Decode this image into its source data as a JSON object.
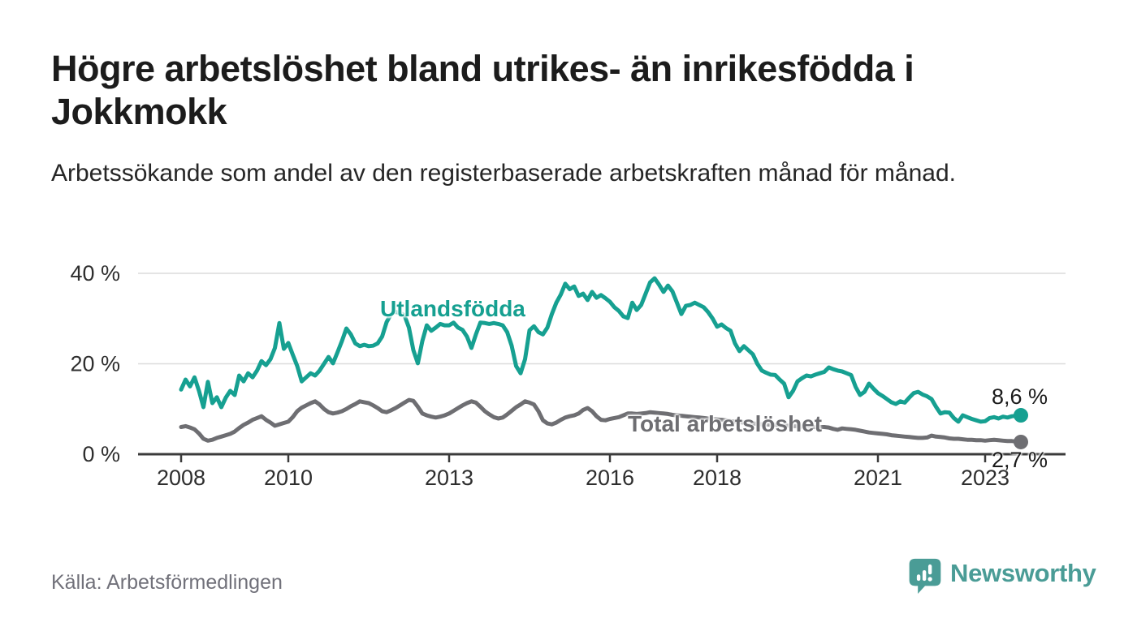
{
  "title": "Högre arbetslöshet bland utrikes- än inrikesfödda i Jokkmokk",
  "subtitle": "Arbetssökande som andel av den registerbaserade arbetskraften månad för månad.",
  "source": "Källa: Arbetsförmedlingen",
  "branding": {
    "name": "Newsworthy",
    "color": "#4a9c96",
    "icon": "bar-chart-exclamation-speech-bubble"
  },
  "chart_data": {
    "type": "line",
    "x_unit": "year, monthly points",
    "x_start": 2008.0,
    "x_step": 0.0833333,
    "xlim": [
      2007.2,
      2024.5
    ],
    "ylim": [
      0,
      40
    ],
    "grid": "horizontal",
    "legend_position": "inline-labels",
    "colors": {
      "axis": "#3b3b3b",
      "grid": "#dcdcdc"
    },
    "y_ticks": [
      {
        "value": 0,
        "label": "0 %"
      },
      {
        "value": 20,
        "label": "20 %"
      },
      {
        "value": 40,
        "label": "40 %"
      }
    ],
    "x_ticks": [
      {
        "year": 2008,
        "label": "2008"
      },
      {
        "year": 2010,
        "label": "2010"
      },
      {
        "year": 2013,
        "label": "2013"
      },
      {
        "year": 2016,
        "label": "2016"
      },
      {
        "year": 2018,
        "label": "2018"
      },
      {
        "year": 2021,
        "label": "2021"
      },
      {
        "year": 2023,
        "label": "2023"
      }
    ],
    "series": [
      {
        "name": "Utlandsfödda",
        "color": "#16a091",
        "end_value": 8.6,
        "end_label": "8,6 %",
        "values": [
          14.3,
          16.5,
          15.0,
          17.0,
          14.0,
          10.4,
          16.0,
          11.3,
          12.6,
          10.4,
          12.5,
          14.0,
          13.1,
          17.4,
          16.1,
          17.9,
          17.0,
          18.5,
          20.6,
          19.7,
          21.0,
          23.5,
          29.0,
          23.3,
          24.6,
          22.0,
          19.5,
          16.1,
          17.0,
          17.9,
          17.4,
          18.5,
          20.0,
          21.5,
          20.1,
          22.5,
          25.0,
          27.8,
          26.5,
          24.5,
          23.9,
          24.2,
          23.9,
          24.0,
          24.5,
          26.0,
          29.2,
          31.0,
          31.5,
          31.2,
          30.7,
          28.0,
          23.0,
          20.1,
          25.0,
          28.5,
          27.3,
          28.0,
          28.8,
          28.5,
          28.5,
          29.1,
          28.0,
          27.5,
          26.0,
          23.5,
          26.5,
          29.1,
          29.0,
          28.8,
          29.0,
          28.8,
          28.5,
          27.0,
          24.0,
          19.5,
          17.9,
          21.0,
          27.4,
          28.3,
          27.0,
          26.5,
          28.0,
          31.0,
          33.5,
          35.3,
          37.7,
          36.5,
          37.1,
          35.0,
          35.5,
          34.1,
          35.9,
          34.6,
          35.2,
          34.5,
          33.7,
          32.5,
          31.7,
          30.5,
          30.1,
          33.5,
          31.9,
          33.0,
          35.5,
          38.0,
          38.9,
          37.5,
          35.9,
          37.3,
          36.0,
          33.5,
          31.0,
          32.8,
          33.0,
          33.5,
          33.0,
          32.5,
          31.4,
          30.0,
          28.2,
          28.7,
          27.9,
          27.3,
          24.5,
          22.8,
          23.9,
          23.0,
          22.1,
          20.0,
          18.5,
          18.0,
          17.6,
          17.5,
          16.5,
          15.6,
          12.6,
          14.0,
          16.1,
          16.8,
          17.4,
          17.2,
          17.6,
          17.9,
          18.2,
          19.2,
          18.8,
          18.5,
          18.3,
          17.9,
          17.5,
          14.9,
          13.1,
          13.8,
          15.6,
          14.5,
          13.5,
          12.9,
          12.2,
          11.5,
          11.1,
          11.7,
          11.4,
          12.5,
          13.5,
          13.8,
          13.2,
          12.8,
          12.2,
          10.5,
          9.0,
          9.3,
          9.2,
          8.0,
          7.2,
          8.6,
          8.2,
          7.8,
          7.5,
          7.2,
          7.3,
          8.0,
          8.2,
          7.9,
          8.3,
          8.1,
          8.4,
          8.5,
          8.6
        ]
      },
      {
        "name": "Total arbetslöshet",
        "color": "#6e6e72",
        "end_value": 2.7,
        "end_label": "2,7 %",
        "values": [
          6.0,
          6.2,
          5.9,
          5.5,
          4.6,
          3.4,
          3.0,
          3.2,
          3.6,
          3.9,
          4.2,
          4.5,
          5.0,
          5.8,
          6.5,
          7.0,
          7.6,
          8.0,
          8.4,
          7.6,
          7.0,
          6.3,
          6.6,
          6.9,
          7.2,
          8.2,
          9.5,
          10.3,
          10.8,
          11.3,
          11.7,
          11.0,
          10.0,
          9.3,
          9.0,
          9.2,
          9.5,
          10.0,
          10.6,
          11.1,
          11.7,
          11.5,
          11.3,
          10.8,
          10.2,
          9.5,
          9.3,
          9.7,
          10.2,
          10.8,
          11.4,
          12.0,
          11.8,
          10.5,
          9.0,
          8.6,
          8.3,
          8.1,
          8.3,
          8.6,
          9.0,
          9.6,
          10.2,
          10.8,
          11.3,
          11.7,
          11.4,
          10.5,
          9.5,
          8.8,
          8.2,
          7.9,
          8.1,
          8.8,
          9.6,
          10.4,
          11.0,
          11.7,
          11.4,
          11.0,
          9.5,
          7.5,
          6.8,
          6.6,
          7.0,
          7.6,
          8.1,
          8.4,
          8.6,
          9.0,
          9.8,
          10.2,
          9.5,
          8.4,
          7.6,
          7.5,
          7.8,
          8.0,
          8.2,
          8.6,
          9.0,
          9.0,
          8.9,
          9.0,
          9.1,
          9.3,
          9.2,
          9.1,
          9.0,
          8.9,
          8.7,
          8.6,
          8.5,
          8.4,
          8.3,
          8.2,
          8.1,
          8.0,
          7.9,
          7.8,
          7.7,
          7.6,
          7.5,
          7.3,
          7.2,
          7.1,
          7.0,
          6.9,
          6.8,
          6.7,
          6.6,
          6.6,
          6.5,
          6.5,
          6.4,
          6.3,
          6.3,
          6.2,
          6.2,
          6.1,
          6.1,
          6.0,
          6.0,
          6.0,
          6.0,
          5.9,
          5.6,
          5.4,
          5.7,
          5.6,
          5.5,
          5.4,
          5.2,
          5.0,
          4.8,
          4.7,
          4.6,
          4.5,
          4.4,
          4.2,
          4.1,
          4.0,
          3.9,
          3.8,
          3.7,
          3.6,
          3.6,
          3.7,
          4.1,
          3.9,
          3.8,
          3.7,
          3.5,
          3.4,
          3.4,
          3.3,
          3.2,
          3.2,
          3.1,
          3.1,
          3.0,
          3.1,
          3.2,
          3.1,
          3.0,
          2.9,
          2.9,
          2.8,
          2.7
        ]
      }
    ]
  }
}
